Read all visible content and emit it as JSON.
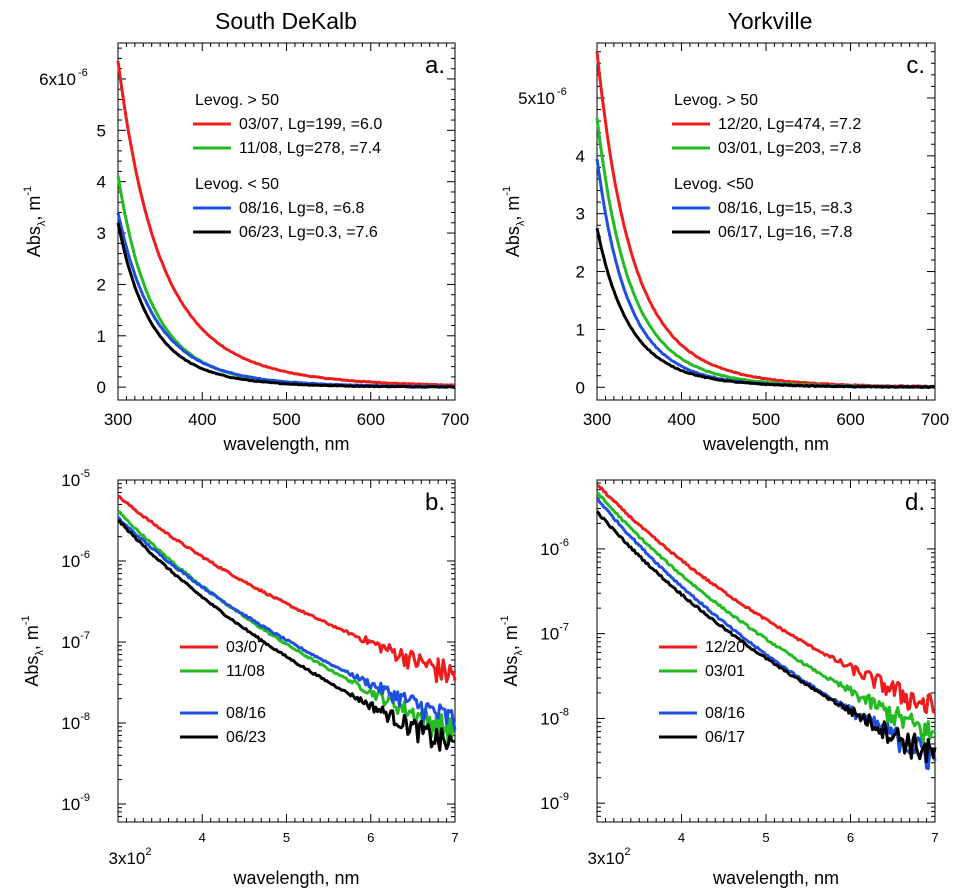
{
  "titles": {
    "left": "South DeKalb",
    "right": "Yorkville"
  },
  "colors": {
    "red": "#ee1c1c",
    "green": "#22bb22",
    "blue": "#1f4fe0",
    "black": "#000000"
  },
  "chart_data": [
    {
      "panel": "a.",
      "type": "line",
      "yscale": "linear",
      "xlabel": "wavelength, nm",
      "ylabel": {
        "base": "Abs",
        "sub": "λ",
        "unit": ", m",
        "sup": "-1"
      },
      "xlim": [
        300,
        700
      ],
      "ylim": [
        -2.5e-07,
        6.7e-06
      ],
      "xticks": [
        "300",
        "400",
        "500",
        "600",
        "700"
      ],
      "yticks": [
        {
          "v": 0,
          "text": "0"
        },
        {
          "v": 1e-06,
          "text": "1"
        },
        {
          "v": 2e-06,
          "text": "2"
        },
        {
          "v": 3e-06,
          "text": "3"
        },
        {
          "v": 4e-06,
          "text": "4"
        },
        {
          "v": 5e-06,
          "text": "5"
        },
        {
          "v": 6e-06,
          "text": "6x10",
          "sup": "-6"
        }
      ],
      "legend_groups": [
        {
          "title": "Levog. > 50",
          "items": [
            {
              "color": "#ee1c1c",
              "text": "03/07, Lg=199,    =6.0"
            },
            {
              "color": "#22bb22",
              "text": "11/08, Lg=278,    =7.4"
            }
          ]
        },
        {
          "title": "Levog. < 50",
          "items": [
            {
              "color": "#1f4fe0",
              "text": "08/16, Lg=8,        =6.8"
            },
            {
              "color": "#000000",
              "text": "06/23, Lg=0.3,     =7.6"
            }
          ]
        }
      ],
      "series": [
        {
          "date": "03/07",
          "color": "#ee1c1c",
          "a0": 6.35e-06,
          "alpha": 6.0
        },
        {
          "date": "11/08",
          "color": "#22bb22",
          "a0": 4.12e-06,
          "alpha": 7.4
        },
        {
          "date": "08/16",
          "color": "#1f4fe0",
          "a0": 3.4e-06,
          "alpha": 6.8
        },
        {
          "date": "06/23",
          "color": "#000000",
          "a0": 3.2e-06,
          "alpha": 7.6
        }
      ]
    },
    {
      "panel": "b.",
      "type": "line",
      "yscale": "log",
      "xlabel": "wavelength, nm",
      "ylabel": {
        "base": "Abs",
        "sub": "λ",
        "unit": ", m",
        "sup": "-1"
      },
      "xlim": [
        300,
        700
      ],
      "ylim": [
        6e-10,
        1e-05
      ],
      "xticks": [
        {
          "v": 300,
          "text": "3x10",
          "sup": "2"
        },
        {
          "v": 400,
          "text": "4"
        },
        {
          "v": 500,
          "text": "5"
        },
        {
          "v": 600,
          "text": "6"
        },
        {
          "v": 700,
          "text": "7"
        }
      ],
      "yticks": [
        {
          "v": 1e-05,
          "exp": "-5"
        },
        {
          "v": 1e-06,
          "exp": "-6"
        },
        {
          "v": 1e-07,
          "exp": "-7"
        },
        {
          "v": 1e-08,
          "exp": "-8"
        },
        {
          "v": 1e-09,
          "exp": "-9"
        }
      ],
      "legend_groups": [
        {
          "items": [
            {
              "color": "#ee1c1c",
              "text": "03/07"
            },
            {
              "color": "#22bb22",
              "text": "11/08"
            }
          ]
        },
        {
          "items": [
            {
              "color": "#1f4fe0",
              "text": "08/16"
            },
            {
              "color": "#000000",
              "text": "06/23"
            }
          ]
        }
      ],
      "series": [
        {
          "date": "03/07",
          "color": "#ee1c1c",
          "a0": 6.35e-06,
          "alpha": 6.0
        },
        {
          "date": "11/08",
          "color": "#22bb22",
          "a0": 4.12e-06,
          "alpha": 7.4
        },
        {
          "date": "08/16",
          "color": "#1f4fe0",
          "a0": 3.4e-06,
          "alpha": 6.8
        },
        {
          "date": "06/23",
          "color": "#000000",
          "a0": 3.2e-06,
          "alpha": 7.6
        }
      ]
    },
    {
      "panel": "c.",
      "type": "line",
      "yscale": "linear",
      "xlabel": "wavelength, nm",
      "ylabel": {
        "base": "Abs",
        "sub": "λ",
        "unit": ", m",
        "sup": "-1"
      },
      "xlim": [
        300,
        700
      ],
      "ylim": [
        -2.2e-07,
        5.95e-06
      ],
      "xticks": [
        "300",
        "400",
        "500",
        "600",
        "700"
      ],
      "yticks": [
        {
          "v": 0,
          "text": "0"
        },
        {
          "v": 1e-06,
          "text": "1"
        },
        {
          "v": 2e-06,
          "text": "2"
        },
        {
          "v": 3e-06,
          "text": "3"
        },
        {
          "v": 4e-06,
          "text": "4"
        },
        {
          "v": 5e-06,
          "text": "5x10",
          "sup": "-6"
        }
      ],
      "legend_groups": [
        {
          "title": "Levog. > 50",
          "items": [
            {
              "color": "#ee1c1c",
              "text": "12/20,  Lg=474,     =7.2"
            },
            {
              "color": "#22bb22",
              "text": "03/01,  Lg=203,     =7.8"
            }
          ]
        },
        {
          "title": "Levog. <50",
          "items": [
            {
              "color": "#1f4fe0",
              "text": "08/16,  Lg=15,       =8.3"
            },
            {
              "color": "#000000",
              "text": "06/17,  Lg=16,       =7.8"
            }
          ]
        }
      ],
      "series": [
        {
          "date": "12/20",
          "color": "#ee1c1c",
          "a0": 5.8e-06,
          "alpha": 7.2
        },
        {
          "date": "03/01",
          "color": "#22bb22",
          "a0": 4.65e-06,
          "alpha": 7.8
        },
        {
          "date": "08/16",
          "color": "#1f4fe0",
          "a0": 3.95e-06,
          "alpha": 8.3
        },
        {
          "date": "06/17",
          "color": "#000000",
          "a0": 2.75e-06,
          "alpha": 7.8
        }
      ]
    },
    {
      "panel": "d.",
      "type": "line",
      "yscale": "log",
      "xlabel": "wavelength, nm",
      "ylabel": {
        "base": "Abs",
        "sub": "λ",
        "unit": ", m",
        "sup": "-1"
      },
      "xlim": [
        300,
        700
      ],
      "ylim": [
        6e-10,
        6.5e-06
      ],
      "xticks": [
        {
          "v": 300,
          "text": "3x10",
          "sup": "2"
        },
        {
          "v": 400,
          "text": "4"
        },
        {
          "v": 500,
          "text": "5"
        },
        {
          "v": 600,
          "text": "6"
        },
        {
          "v": 700,
          "text": "7"
        }
      ],
      "yticks": [
        {
          "v": 1e-06,
          "exp": "-6"
        },
        {
          "v": 1e-07,
          "exp": "-7"
        },
        {
          "v": 1e-08,
          "exp": "-8"
        },
        {
          "v": 1e-09,
          "exp": "-9"
        }
      ],
      "legend_groups": [
        {
          "items": [
            {
              "color": "#ee1c1c",
              "text": "12/20"
            },
            {
              "color": "#22bb22",
              "text": "03/01"
            }
          ]
        },
        {
          "items": [
            {
              "color": "#1f4fe0",
              "text": "08/16"
            },
            {
              "color": "#000000",
              "text": "06/17"
            }
          ]
        }
      ],
      "series": [
        {
          "date": "12/20",
          "color": "#ee1c1c",
          "a0": 5.8e-06,
          "alpha": 7.2
        },
        {
          "date": "03/01",
          "color": "#22bb22",
          "a0": 4.65e-06,
          "alpha": 7.8
        },
        {
          "date": "08/16",
          "color": "#1f4fe0",
          "a0": 3.95e-06,
          "alpha": 8.3
        },
        {
          "date": "06/17",
          "color": "#000000",
          "a0": 2.75e-06,
          "alpha": 7.8
        }
      ]
    }
  ]
}
